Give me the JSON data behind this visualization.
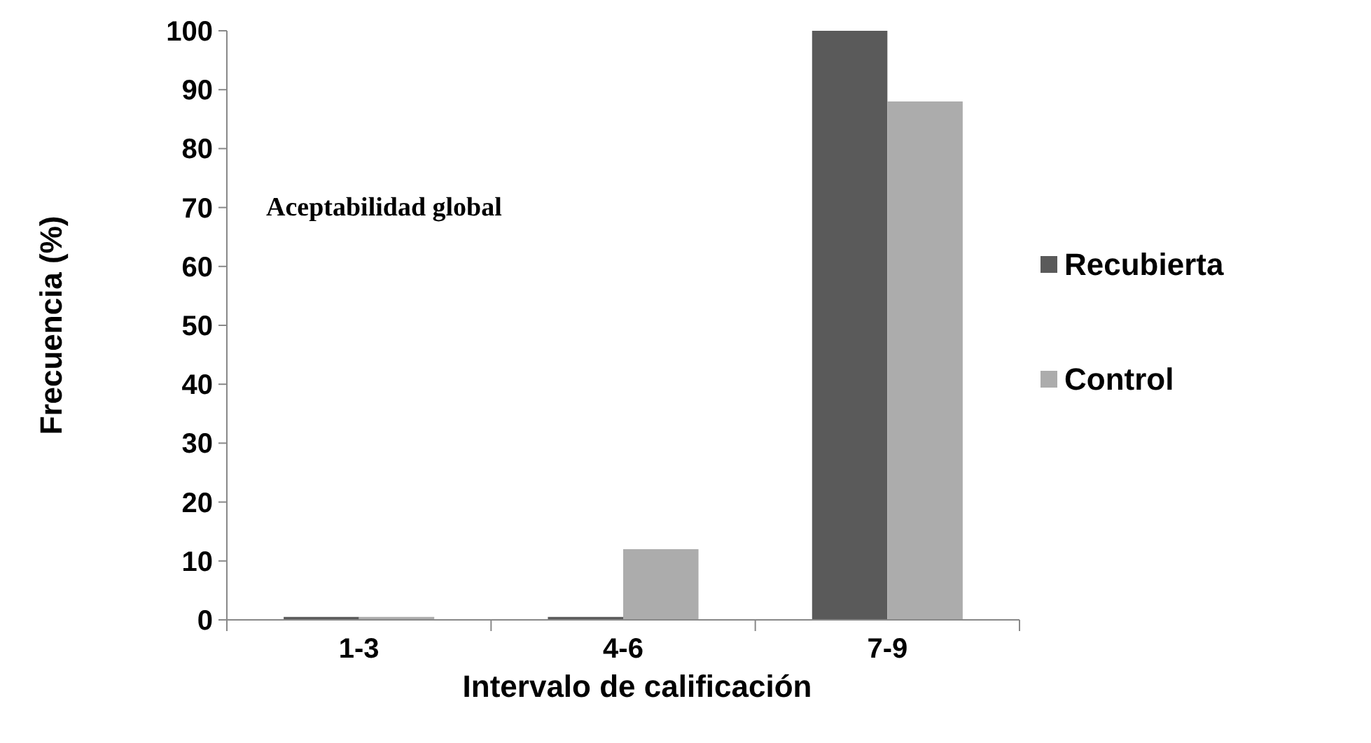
{
  "chart_data": {
    "type": "bar",
    "categories": [
      "1-3",
      "4-6",
      "7-9"
    ],
    "series": [
      {
        "name": "Recubierta",
        "color": "#5a5a5a",
        "values": [
          0.5,
          0.5,
          100
        ]
      },
      {
        "name": "Control",
        "color": "#acacac",
        "values": [
          0.5,
          12,
          88
        ]
      }
    ],
    "xlabel": "Intervalo de calificación",
    "ylabel": "Frecuencia (%)",
    "annotations": [
      "Aceptabilidad global"
    ],
    "ylim": [
      0,
      100
    ],
    "yticks": [
      0,
      10,
      20,
      30,
      40,
      50,
      60,
      70,
      80,
      90,
      100
    ],
    "grid": false,
    "legend": "right"
  }
}
